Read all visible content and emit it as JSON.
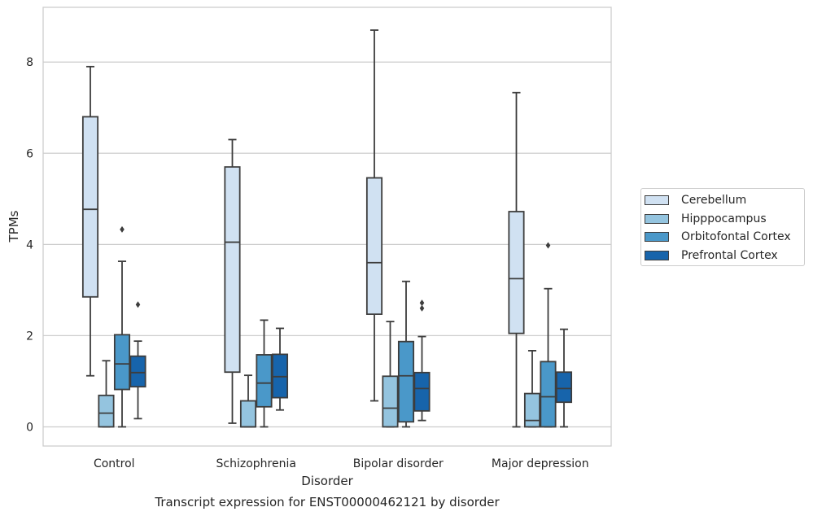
{
  "chart_data": {
    "type": "box",
    "title": "",
    "caption": "Transcript expression for ENST00000462121 by disorder",
    "xlabel": "Disorder",
    "ylabel": "TPMs",
    "ylim": [
      -0.42,
      9.2
    ],
    "yticks": [
      0,
      2,
      4,
      6,
      8
    ],
    "grid": "horizontal",
    "legend_position": "right",
    "categories": [
      "Control",
      "Schizophrenia",
      "Bipolar disorder",
      "Major depression"
    ],
    "series": [
      {
        "name": "Cerebellum",
        "color": "#d0e1f2",
        "boxes": [
          {
            "whislo": 1.12,
            "q1": 2.85,
            "med": 4.77,
            "q3": 6.8,
            "whishi": 7.9,
            "fliers": []
          },
          {
            "whislo": 0.08,
            "q1": 1.2,
            "med": 4.05,
            "q3": 5.7,
            "whishi": 6.3,
            "fliers": []
          },
          {
            "whislo": 0.57,
            "q1": 2.47,
            "med": 3.6,
            "q3": 5.46,
            "whishi": 8.7,
            "fliers": []
          },
          {
            "whislo": 0.0,
            "q1": 2.05,
            "med": 3.25,
            "q3": 4.72,
            "whishi": 7.33,
            "fliers": []
          }
        ]
      },
      {
        "name": "Hipppocampus",
        "color": "#94c4df",
        "boxes": [
          {
            "whislo": 0.0,
            "q1": 0.0,
            "med": 0.3,
            "q3": 0.69,
            "whishi": 1.45,
            "fliers": []
          },
          {
            "whislo": 0.0,
            "q1": 0.0,
            "med": 0.0,
            "q3": 0.57,
            "whishi": 1.13,
            "fliers": []
          },
          {
            "whislo": 0.0,
            "q1": 0.0,
            "med": 0.41,
            "q3": 1.11,
            "whishi": 2.31,
            "fliers": []
          },
          {
            "whislo": 0.0,
            "q1": 0.0,
            "med": 0.14,
            "q3": 0.73,
            "whishi": 1.67,
            "fliers": []
          }
        ]
      },
      {
        "name": "Orbitofontal Cortex",
        "color": "#4a98c9",
        "boxes": [
          {
            "whislo": 0.0,
            "q1": 0.82,
            "med": 1.38,
            "q3": 2.02,
            "whishi": 3.63,
            "fliers": [
              4.33
            ]
          },
          {
            "whislo": 0.0,
            "q1": 0.44,
            "med": 0.96,
            "q3": 1.58,
            "whishi": 2.34,
            "fliers": []
          },
          {
            "whislo": 0.0,
            "q1": 0.11,
            "med": 1.12,
            "q3": 1.87,
            "whishi": 3.19,
            "fliers": []
          },
          {
            "whislo": 0.0,
            "q1": 0.0,
            "med": 0.66,
            "q3": 1.43,
            "whishi": 3.03,
            "fliers": [
              3.98
            ]
          }
        ]
      },
      {
        "name": "Prefrontal Cortex",
        "color": "#1764ab",
        "boxes": [
          {
            "whislo": 0.18,
            "q1": 0.88,
            "med": 1.19,
            "q3": 1.55,
            "whishi": 1.88,
            "fliers": [
              2.68
            ]
          },
          {
            "whislo": 0.37,
            "q1": 0.64,
            "med": 1.1,
            "q3": 1.59,
            "whishi": 2.16,
            "fliers": []
          },
          {
            "whislo": 0.14,
            "q1": 0.35,
            "med": 0.84,
            "q3": 1.19,
            "whishi": 1.98,
            "fliers": [
              2.6,
              2.72
            ]
          },
          {
            "whislo": 0.0,
            "q1": 0.54,
            "med": 0.84,
            "q3": 1.2,
            "whishi": 2.14,
            "fliers": []
          }
        ]
      }
    ]
  }
}
